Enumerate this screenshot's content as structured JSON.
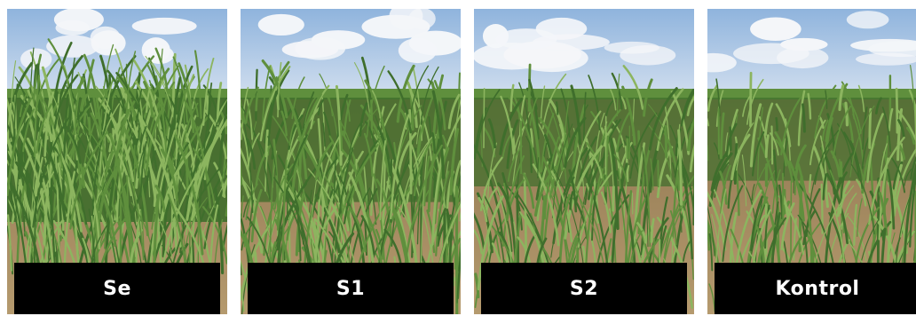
{
  "panels": [
    {
      "label": "Se",
      "density": 1.0
    },
    {
      "label": "S1",
      "density": 0.72
    },
    {
      "label": "S2",
      "density": 0.5
    },
    {
      "label": "Kontrol",
      "density": 0.42
    }
  ],
  "colors": {
    "sky_top": "#8fb4dd",
    "sky_bottom": "#cfddee",
    "cloud": "#f4f6f9",
    "soil": "#b59a6e",
    "soil_dark": "#8f7650",
    "leaf_dark": "#3f6e2c",
    "leaf_mid": "#5f8f3d",
    "leaf_light": "#8cb55f",
    "label_bg": "#000000",
    "label_text": "#ffffff"
  }
}
